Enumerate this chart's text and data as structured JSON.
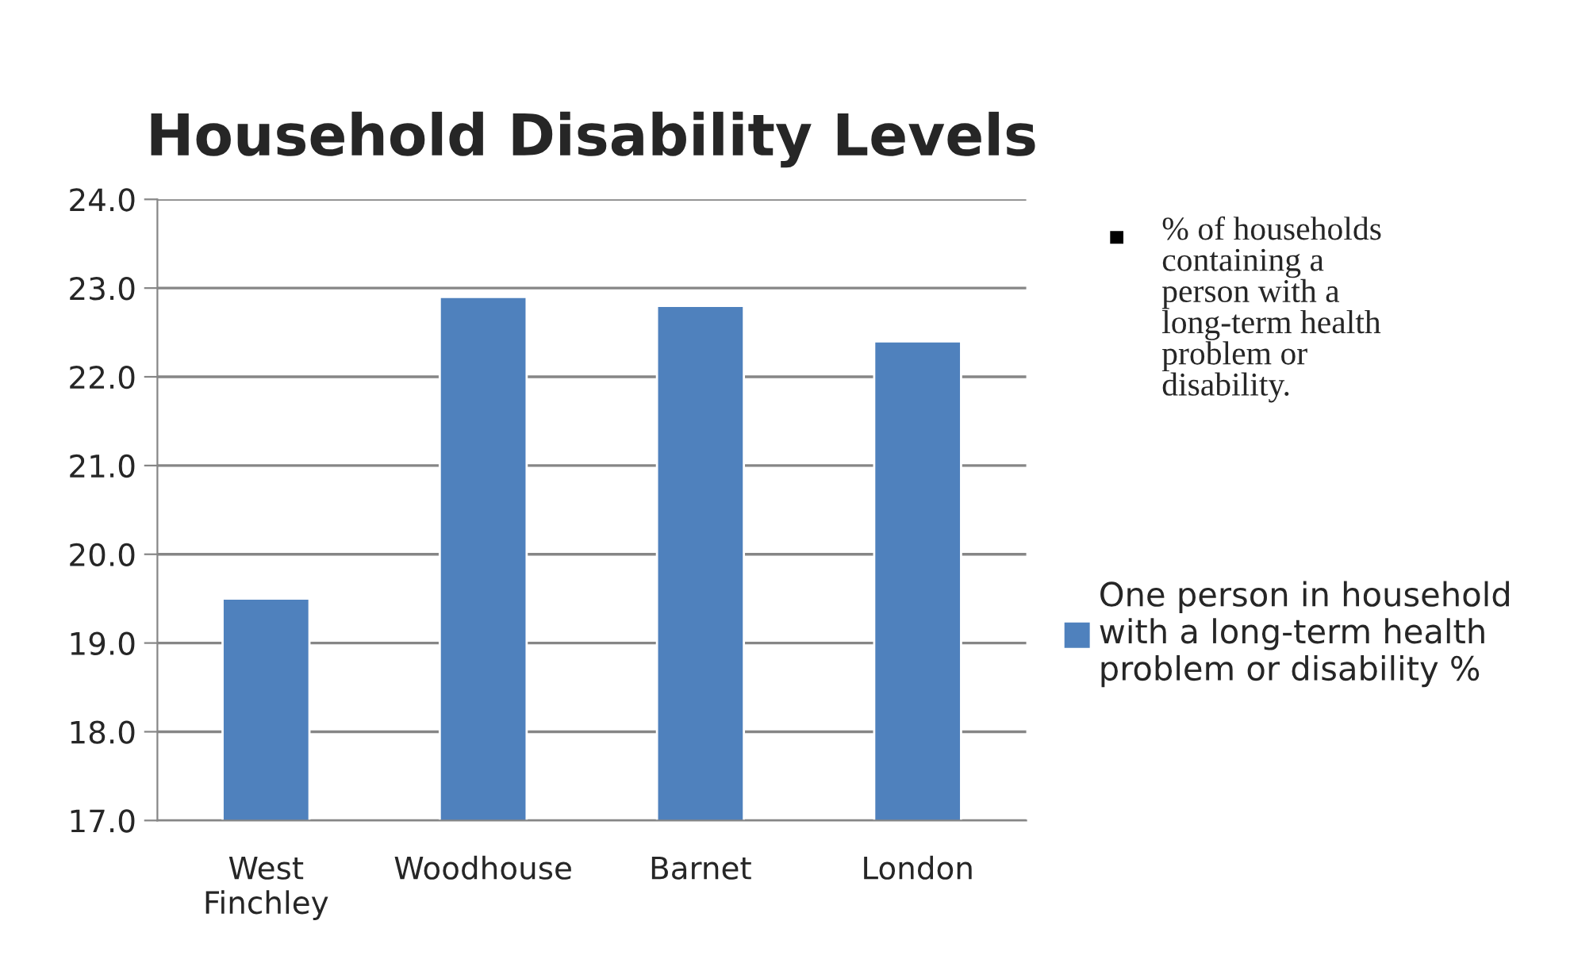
{
  "chart_data": {
    "type": "bar",
    "title": "Household Disability Levels",
    "categories": [
      "West\nFinchley",
      "Woodhouse",
      "Barnet",
      "London"
    ],
    "series": [
      {
        "name": "One person in household\nwith a long-term health\nproblem or disability %",
        "color": "#4f81bd",
        "values": [
          19.5,
          22.9,
          22.8,
          22.4
        ]
      }
    ],
    "ylim": [
      17,
      24
    ],
    "yticks": [
      {
        "value": 17,
        "label": "17.0"
      },
      {
        "value": 18,
        "label": "18.0"
      },
      {
        "value": 19,
        "label": "19.0"
      },
      {
        "value": 20,
        "label": "20.0"
      },
      {
        "value": 21,
        "label": "21.0"
      },
      {
        "value": 22,
        "label": "22.0"
      },
      {
        "value": 23,
        "label": "23.0"
      },
      {
        "value": 24,
        "label": "24.0"
      }
    ],
    "grid": "y",
    "legend": "right",
    "annotations": [
      "% of households\ncontaining a\nperson with a\nlong-term health\nproblem or\ndisability."
    ]
  }
}
